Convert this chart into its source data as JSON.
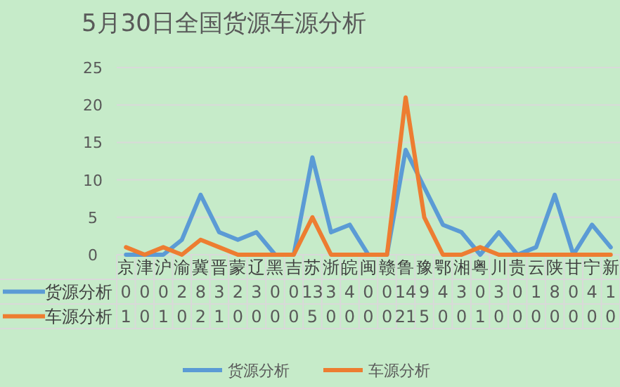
{
  "chart_data": {
    "type": "line",
    "title": "5月30日全国货源车源分析",
    "categories": [
      "京",
      "津",
      "沪",
      "渝",
      "冀",
      "晋",
      "蒙",
      "辽",
      "黑",
      "吉",
      "苏",
      "浙",
      "皖",
      "闽",
      "赣",
      "鲁",
      "豫",
      "鄂",
      "湘",
      "粤",
      "川",
      "贵",
      "云",
      "陕",
      "甘",
      "宁",
      "新"
    ],
    "series": [
      {
        "name": "货源分析",
        "color": "#5b9bd5",
        "values": [
          0,
          0,
          0,
          2,
          8,
          3,
          2,
          3,
          0,
          0,
          13,
          3,
          4,
          0,
          0,
          14,
          9,
          4,
          3,
          0,
          3,
          0,
          1,
          8,
          0,
          4,
          1
        ]
      },
      {
        "name": "车源分析",
        "color": "#ed7d31",
        "values": [
          1,
          0,
          1,
          0,
          2,
          1,
          0,
          0,
          0,
          0,
          5,
          0,
          0,
          0,
          0,
          21,
          5,
          0,
          0,
          1,
          0,
          0,
          0,
          0,
          0,
          0,
          0
        ]
      }
    ],
    "ylim": [
      0,
      25
    ],
    "yticks": [
      0,
      5,
      10,
      15,
      20,
      25
    ],
    "grid": "y",
    "legend": "bottom",
    "data_labels": true
  }
}
